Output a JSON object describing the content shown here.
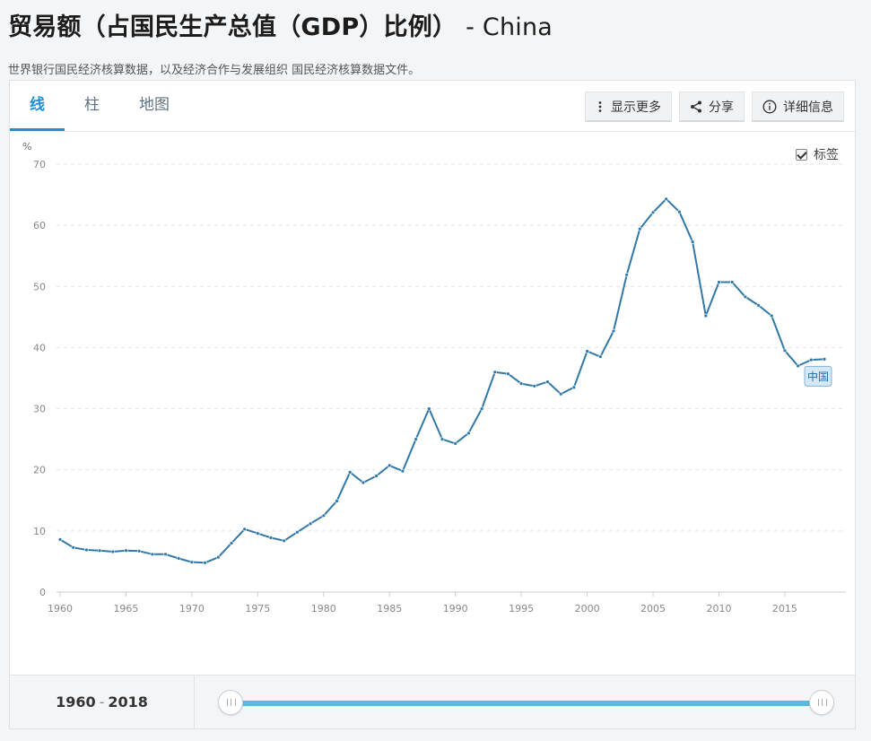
{
  "header": {
    "title": "贸易额（占国民生产总值（GDP）比例）",
    "country": "- China",
    "source": "世界银行国民经济核算数据，以及经济合作与发展组织 国民经济核算数据文件。"
  },
  "tabs": [
    {
      "label": "线",
      "active": true
    },
    {
      "label": "柱",
      "active": false
    },
    {
      "label": "地图",
      "active": false
    }
  ],
  "toolbar": {
    "more_label": "显示更多",
    "share_label": "分享",
    "details_label": "详细信息"
  },
  "label_toggle": {
    "label": "标签",
    "checked": true
  },
  "range": {
    "start": "1960",
    "sep": "-",
    "end": "2018"
  },
  "colors": {
    "line": "#2f78a8",
    "accent": "#1f8ed6",
    "slider": "#5bb8e0"
  },
  "chart_data": {
    "type": "line",
    "ylabel": "%",
    "ylim": [
      0,
      70
    ],
    "yticks": [
      0,
      10,
      20,
      30,
      40,
      50,
      60,
      70
    ],
    "xlim": [
      1960,
      2018
    ],
    "xticks": [
      1960,
      1965,
      1970,
      1975,
      1980,
      1985,
      1990,
      1995,
      2000,
      2005,
      2010,
      2015
    ],
    "grid": true,
    "series": [
      {
        "name": "中国",
        "x": [
          1960,
          1961,
          1962,
          1963,
          1964,
          1965,
          1966,
          1967,
          1968,
          1969,
          1970,
          1971,
          1972,
          1973,
          1974,
          1975,
          1976,
          1977,
          1978,
          1979,
          1980,
          1981,
          1982,
          1983,
          1984,
          1985,
          1986,
          1987,
          1988,
          1989,
          1990,
          1991,
          1992,
          1993,
          1994,
          1995,
          1996,
          1997,
          1998,
          1999,
          2000,
          2001,
          2002,
          2003,
          2004,
          2005,
          2006,
          2007,
          2008,
          2009,
          2010,
          2011,
          2012,
          2013,
          2014,
          2015,
          2016,
          2017,
          2018
        ],
        "values": [
          8.6,
          7.3,
          6.9,
          6.8,
          6.6,
          6.8,
          6.7,
          6.2,
          6.2,
          5.5,
          4.9,
          4.8,
          5.7,
          8.0,
          10.3,
          9.6,
          8.9,
          8.4,
          9.8,
          11.2,
          12.5,
          14.9,
          19.6,
          17.9,
          19.0,
          20.7,
          19.8,
          25.0,
          30.0,
          25.0,
          24.3,
          26.0,
          30.0,
          36.0,
          35.7,
          34.1,
          33.7,
          34.4,
          32.4,
          33.5,
          39.4,
          38.5,
          42.7,
          51.9,
          59.4,
          62.1,
          64.3,
          62.2,
          57.3,
          45.2,
          50.7,
          50.7,
          48.3,
          46.9,
          45.2,
          39.5,
          37.0,
          38.0,
          38.1
        ]
      }
    ]
  }
}
